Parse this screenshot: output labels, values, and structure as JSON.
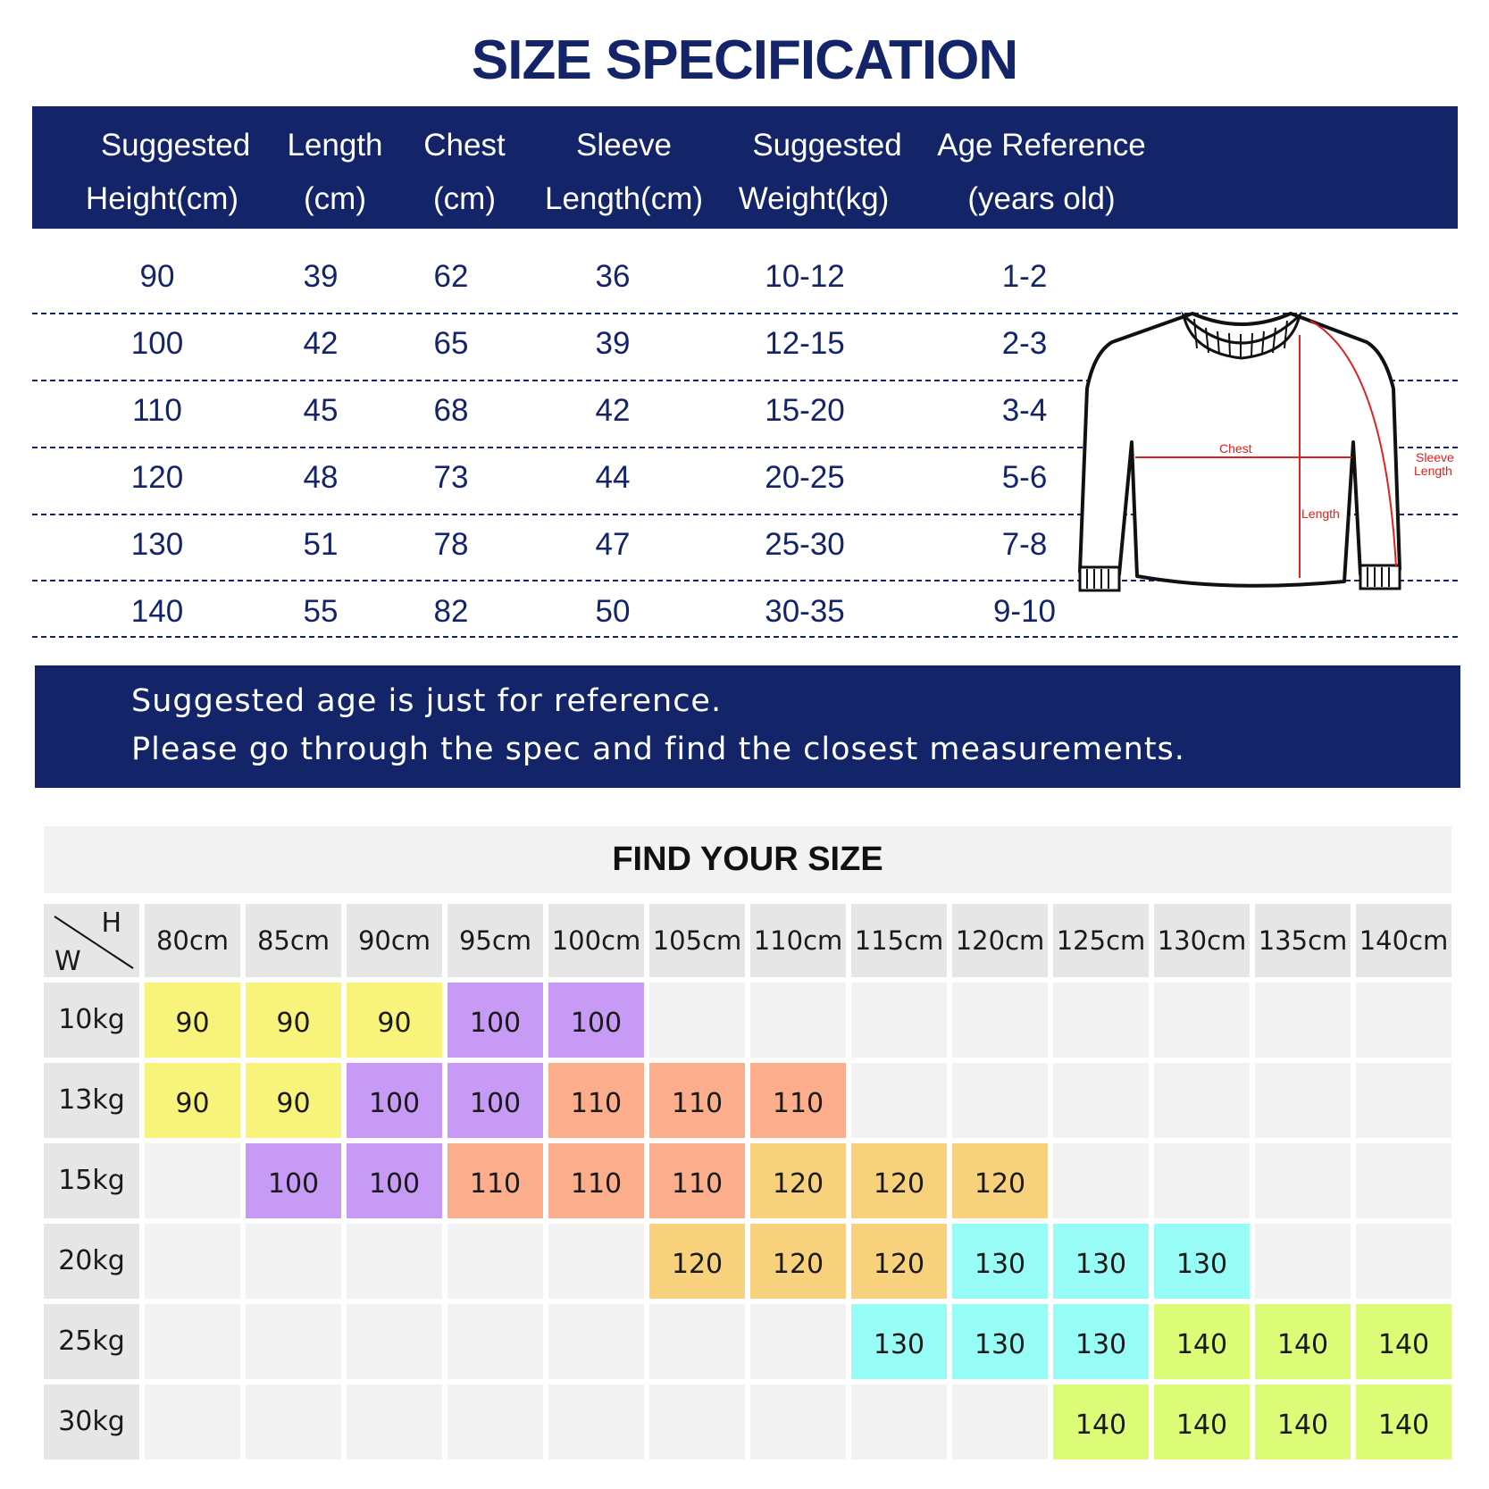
{
  "title": "SIZE SPECIFICATION",
  "spec_table": {
    "headers": [
      {
        "line1": "Suggested",
        "line2": "Height(cm)"
      },
      {
        "line1": "Length",
        "line2": "(cm)"
      },
      {
        "line1": "Chest",
        "line2": "(cm)"
      },
      {
        "line1": "Sleeve",
        "line2": "Length(cm)"
      },
      {
        "line1": "Suggested",
        "line2": "Weight(kg)"
      },
      {
        "line1": "Age Reference",
        "line2": "(years old)"
      }
    ],
    "rows": [
      [
        "90",
        "39",
        "62",
        "36",
        "10-12",
        "1-2"
      ],
      [
        "100",
        "42",
        "65",
        "39",
        "12-15",
        "2-3"
      ],
      [
        "110",
        "45",
        "68",
        "42",
        "15-20",
        "3-4"
      ],
      [
        "120",
        "48",
        "73",
        "44",
        "20-25",
        "5-6"
      ],
      [
        "130",
        "51",
        "78",
        "47",
        "25-30",
        "7-8"
      ],
      [
        "140",
        "55",
        "82",
        "50",
        "30-35",
        "9-10"
      ]
    ]
  },
  "diagram": {
    "chest_label": "Chest",
    "sleeve_label_1": "Sleeve",
    "sleeve_label_2": "Length",
    "length_label": "Length",
    "measure_color": "#e02020"
  },
  "note": {
    "line1": "Suggested age is just for reference.",
    "line2": "Please go through the spec and find the closest measurements."
  },
  "size_finder": {
    "title": "FIND YOUR SIZE",
    "corner_h": "H",
    "corner_w": "W",
    "heights": [
      "80cm",
      "85cm",
      "90cm",
      "95cm",
      "100cm",
      "105cm",
      "110cm",
      "115cm",
      "120cm",
      "125cm",
      "130cm",
      "135cm",
      "140cm"
    ],
    "weights": [
      "10kg",
      "13kg",
      "15kg",
      "20kg",
      "25kg",
      "30kg"
    ],
    "cells": [
      [
        "90",
        "90",
        "90",
        "100",
        "100",
        "",
        "",
        "",
        "",
        "",
        "",
        "",
        ""
      ],
      [
        "90",
        "90",
        "100",
        "100",
        "110",
        "110",
        "110",
        "",
        "",
        "",
        "",
        "",
        ""
      ],
      [
        "",
        "100",
        "100",
        "110",
        "110",
        "110",
        "120",
        "120",
        "120",
        "",
        "",
        "",
        ""
      ],
      [
        "",
        "",
        "",
        "",
        "",
        "120",
        "120",
        "120",
        "130",
        "130",
        "130",
        "",
        ""
      ],
      [
        "",
        "",
        "",
        "",
        "",
        "",
        "",
        "130",
        "130",
        "130",
        "140",
        "140",
        "140"
      ],
      [
        "",
        "",
        "",
        "",
        "",
        "",
        "",
        "",
        "",
        "140",
        "140",
        "140",
        "140"
      ]
    ],
    "size_colors": {
      "90": "#f8f37a",
      "100": "#c69af5",
      "110": "#fbad8c",
      "120": "#f7d17c",
      "130": "#98fcf6",
      "140": "#dcfc78"
    },
    "header_color": "#e6e6e6",
    "empty_color": "#f2f2f2"
  }
}
